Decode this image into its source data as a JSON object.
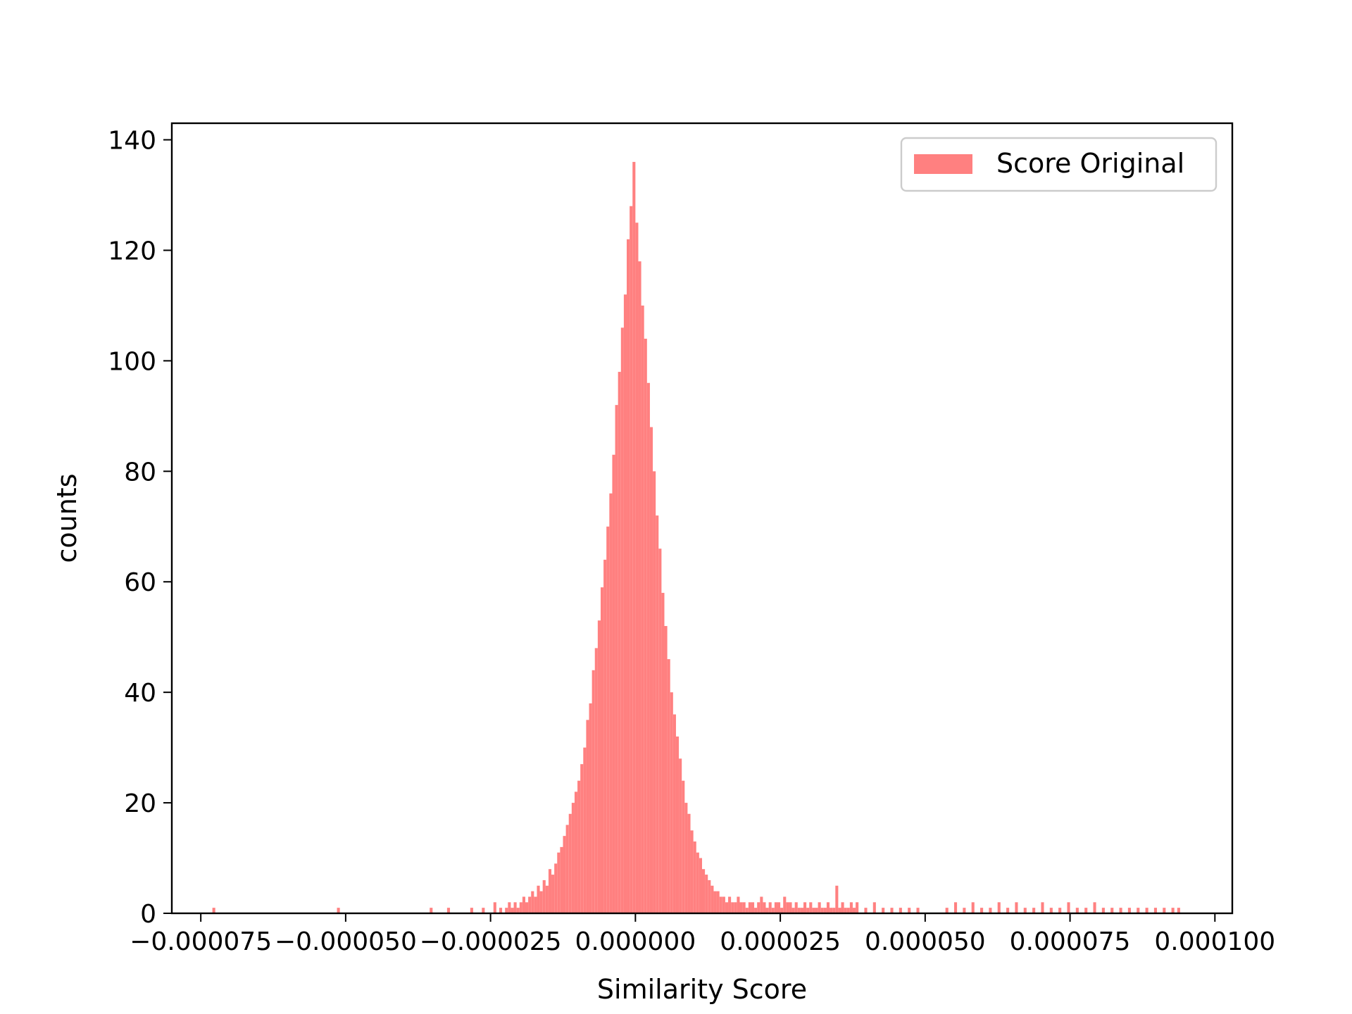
{
  "chart_data": {
    "type": "bar",
    "subtype": "histogram",
    "title": "",
    "xlabel": "Similarity Score",
    "ylabel": "counts",
    "xlim": [
      -8e-05,
      0.000103
    ],
    "ylim": [
      0,
      143
    ],
    "x_ticks": [
      -7.5e-05,
      -5e-05,
      -2.5e-05,
      0.0,
      2.5e-05,
      5e-05,
      7.5e-05,
      0.0001
    ],
    "x_tick_labels": [
      "−0.000075",
      "−0.000050",
      "−0.000025",
      "0.000000",
      "0.000025",
      "0.000050",
      "0.000075",
      "0.000100"
    ],
    "y_ticks": [
      0,
      20,
      40,
      60,
      80,
      100,
      120,
      140
    ],
    "y_tick_labels": [
      "0",
      "20",
      "40",
      "60",
      "80",
      "100",
      "120",
      "140"
    ],
    "grid": false,
    "legend": {
      "placement": "top-right",
      "entries": [
        "Score Original"
      ]
    },
    "series": [
      {
        "name": "Score Original",
        "color": "#ff8080",
        "bin_width": 5e-07,
        "bin_starts": [
          -7.3e-05,
          -5.15e-05,
          -3.55e-05,
          -3.25e-05,
          -2.85e-05,
          -2.65e-05,
          -2.45e-05,
          -2.35e-05,
          -2.25e-05,
          -2.2e-05,
          -2.15e-05,
          -2.1e-05,
          -2.05e-05,
          -2e-05,
          -1.95e-05,
          -1.9e-05,
          -1.85e-05,
          -1.8e-05,
          -1.75e-05,
          -1.7e-05,
          -1.65e-05,
          -1.6e-05,
          -1.55e-05,
          -1.5e-05,
          -1.45e-05,
          -1.4e-05,
          -1.35e-05,
          -1.3e-05,
          -1.25e-05,
          -1.2e-05,
          -1.15e-05,
          -1.1e-05,
          -1.05e-05,
          -1e-05,
          -9.5e-06,
          -9e-06,
          -8.5e-06,
          -8e-06,
          -7.5e-06,
          -7e-06,
          -6.5e-06,
          -6e-06,
          -5.5e-06,
          -5e-06,
          -4.5e-06,
          -4e-06,
          -3.5e-06,
          -3e-06,
          -2.5e-06,
          -2e-06,
          -1.5e-06,
          -1e-06,
          -5e-07,
          0.0,
          5e-07,
          1e-06,
          1.5e-06,
          2e-06,
          2.5e-06,
          3e-06,
          3.5e-06,
          4e-06,
          4.5e-06,
          5e-06,
          5.5e-06,
          6e-06,
          6.5e-06,
          7e-06,
          7.5e-06,
          8e-06,
          8.5e-06,
          9e-06,
          9.5e-06,
          1e-05,
          1.05e-05,
          1.1e-05,
          1.15e-05,
          1.2e-05,
          1.25e-05,
          1.3e-05,
          1.35e-05,
          1.4e-05,
          1.45e-05,
          1.5e-05,
          1.55e-05,
          1.6e-05,
          1.65e-05,
          1.7e-05,
          1.75e-05,
          1.8e-05,
          1.85e-05,
          1.9e-05,
          1.95e-05,
          2e-05,
          2.05e-05,
          2.1e-05,
          2.15e-05,
          2.2e-05,
          2.25e-05,
          2.3e-05,
          2.35e-05,
          2.4e-05,
          2.45e-05,
          2.5e-05,
          2.55e-05,
          2.6e-05,
          2.65e-05,
          2.7e-05,
          2.75e-05,
          2.8e-05,
          2.85e-05,
          2.9e-05,
          2.95e-05,
          3e-05,
          3.05e-05,
          3.1e-05,
          3.15e-05,
          3.2e-05,
          3.25e-05,
          3.3e-05,
          3.35e-05,
          3.4e-05,
          3.45e-05,
          3.5e-05,
          3.55e-05,
          3.6e-05,
          3.65e-05,
          3.7e-05,
          3.75e-05,
          3.8e-05,
          3.95e-05,
          4.1e-05,
          4.25e-05,
          4.4e-05,
          4.55e-05,
          4.7e-05,
          4.85e-05,
          5.35e-05,
          5.5e-05,
          5.65e-05,
          5.8e-05,
          5.95e-05,
          6.1e-05,
          6.25e-05,
          6.4e-05,
          6.55e-05,
          6.7e-05,
          6.85e-05,
          7e-05,
          7.15e-05,
          7.3e-05,
          7.45e-05,
          7.6e-05,
          7.75e-05,
          7.9e-05,
          8.05e-05,
          8.2e-05,
          8.35e-05,
          8.5e-05,
          8.65e-05,
          8.8e-05,
          8.95e-05,
          9.1e-05,
          9.25e-05,
          9.35e-05
        ],
        "counts": [
          1,
          1,
          1,
          1,
          1,
          1,
          2,
          1,
          1,
          2,
          1,
          2,
          1,
          2,
          3,
          2,
          3,
          4,
          3,
          5,
          4,
          6,
          5,
          8,
          7,
          9,
          11,
          12,
          14,
          16,
          18,
          20,
          22,
          24,
          27,
          30,
          35,
          38,
          44,
          48,
          53,
          59,
          64,
          70,
          76,
          83,
          92,
          98,
          106,
          112,
          122,
          128,
          136,
          125,
          118,
          110,
          104,
          96,
          88,
          80,
          72,
          66,
          58,
          52,
          46,
          40,
          36,
          32,
          28,
          24,
          20,
          18,
          15,
          13,
          11,
          10,
          8,
          7,
          6,
          5,
          4,
          4,
          3,
          3,
          2,
          3,
          2,
          2,
          3,
          2,
          2,
          1,
          2,
          2,
          1,
          2,
          3,
          2,
          1,
          2,
          1,
          2,
          2,
          1,
          3,
          2,
          2,
          1,
          2,
          1,
          1,
          2,
          1,
          2,
          1,
          1,
          2,
          1,
          1,
          2,
          1,
          1,
          5,
          1,
          2,
          1,
          1,
          2,
          1,
          2,
          1,
          2,
          1,
          1,
          1,
          1,
          1,
          1,
          2,
          1,
          2,
          1,
          1,
          2,
          1,
          2,
          1,
          1,
          2,
          1,
          1,
          2,
          1,
          1,
          2,
          1,
          1,
          1,
          1,
          1,
          1,
          1,
          1,
          1,
          1
        ]
      }
    ]
  }
}
